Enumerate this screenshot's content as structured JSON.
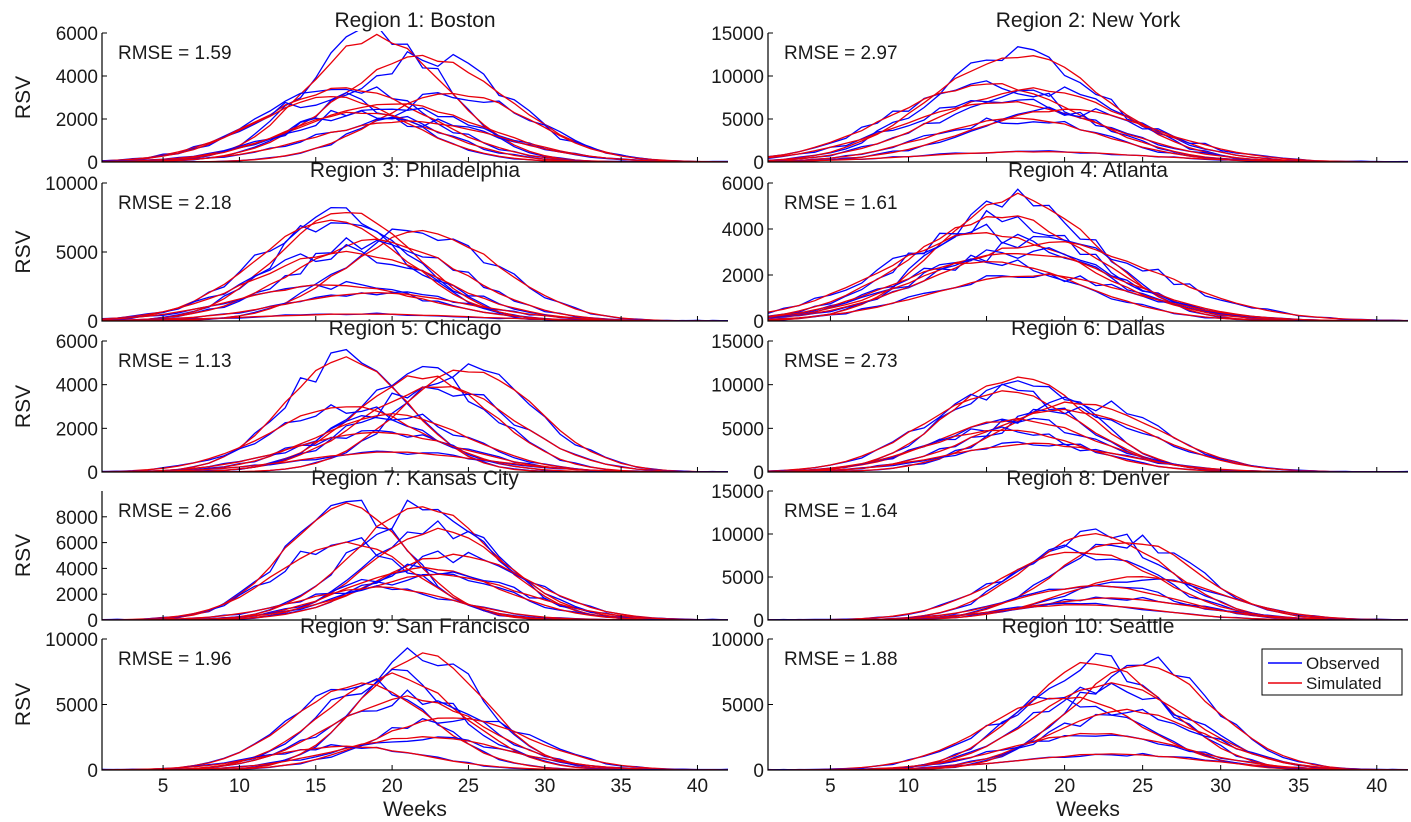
{
  "chart_data": {
    "type": "line",
    "xlabel": "Weeks",
    "xlim": [
      1,
      42
    ],
    "xticks": [
      5,
      10,
      15,
      20,
      25,
      30,
      35,
      40
    ],
    "colors": {
      "observed": "#0000ff",
      "simulated": "#e8000b"
    },
    "legend": {
      "placement": "top-right",
      "panel": 9,
      "entries": [
        "Observed",
        "Simulated"
      ]
    },
    "panels": [
      {
        "title": "Region 1: Boston",
        "rmse": "RMSE = 1.59",
        "ylabel": "RSV",
        "ylim": [
          0,
          6000
        ],
        "yticks": [
          0,
          2000,
          4000,
          6000
        ],
        "seasons": [
          {
            "peak": 5800,
            "week": 19,
            "width": 4.5
          },
          {
            "peak": 4900,
            "week": 22,
            "width": 5.5
          },
          {
            "peak": 3400,
            "week": 17,
            "width": 5.5
          },
          {
            "peak": 3200,
            "week": 24,
            "width": 5
          },
          {
            "peak": 3000,
            "week": 16,
            "width": 5
          },
          {
            "peak": 2700,
            "week": 20,
            "width": 6
          },
          {
            "peak": 2300,
            "week": 18,
            "width": 5
          },
          {
            "peak": 1900,
            "week": 21,
            "width": 6
          }
        ]
      },
      {
        "title": "Region 2: New York",
        "rmse": "RMSE = 2.97",
        "ylabel": "",
        "ylim": [
          0,
          15000
        ],
        "yticks": [
          0,
          5000,
          10000,
          15000
        ],
        "seasons": [
          {
            "peak": 12500,
            "week": 17,
            "width": 5.5
          },
          {
            "peak": 9000,
            "week": 15,
            "width": 6
          },
          {
            "peak": 8500,
            "week": 18,
            "width": 6
          },
          {
            "peak": 7000,
            "week": 16,
            "width": 6.5
          },
          {
            "peak": 6000,
            "week": 20,
            "width": 6
          },
          {
            "peak": 5000,
            "week": 17,
            "width": 5.5
          },
          {
            "peak": 1200,
            "week": 18,
            "width": 7
          }
        ]
      },
      {
        "title": "Region 3: Philadelphia",
        "rmse": "RMSE = 2.18",
        "ylabel": "RSV",
        "ylim": [
          0,
          10000
        ],
        "yticks": [
          0,
          5000,
          10000
        ],
        "seasons": [
          {
            "peak": 7900,
            "week": 17,
            "width": 4.5
          },
          {
            "peak": 7200,
            "week": 16,
            "width": 5
          },
          {
            "peak": 6500,
            "week": 22,
            "width": 5
          },
          {
            "peak": 5800,
            "week": 19,
            "width": 5.5
          },
          {
            "peak": 5000,
            "week": 17,
            "width": 6
          },
          {
            "peak": 2600,
            "week": 16,
            "width": 6
          },
          {
            "peak": 2000,
            "week": 19,
            "width": 6
          },
          {
            "peak": 500,
            "week": 18,
            "width": 7
          }
        ]
      },
      {
        "title": "Region 4: Atlanta",
        "rmse": "RMSE = 1.61",
        "ylabel": "",
        "ylim": [
          0,
          6000
        ],
        "yticks": [
          0,
          2000,
          4000,
          6000
        ],
        "seasons": [
          {
            "peak": 5400,
            "week": 17,
            "width": 5
          },
          {
            "peak": 4500,
            "week": 16,
            "width": 6
          },
          {
            "peak": 3800,
            "week": 15,
            "width": 6.5
          },
          {
            "peak": 3400,
            "week": 19,
            "width": 7
          },
          {
            "peak": 3000,
            "week": 17,
            "width": 6.5
          },
          {
            "peak": 2600,
            "week": 15,
            "width": 6
          },
          {
            "peak": 2000,
            "week": 18,
            "width": 6.5
          }
        ]
      },
      {
        "title": "Region 5: Chicago",
        "rmse": "RMSE = 1.13",
        "ylabel": "RSV",
        "ylim": [
          0,
          6000
        ],
        "yticks": [
          0,
          2000,
          4000,
          6000
        ],
        "seasons": [
          {
            "peak": 5200,
            "week": 17,
            "width": 4
          },
          {
            "peak": 4700,
            "week": 25,
            "width": 4.5
          },
          {
            "peak": 4400,
            "week": 22,
            "width": 4.5
          },
          {
            "peak": 3900,
            "week": 23,
            "width": 5
          },
          {
            "peak": 3000,
            "week": 17,
            "width": 5
          },
          {
            "peak": 2600,
            "week": 20,
            "width": 5
          },
          {
            "peak": 1800,
            "week": 19,
            "width": 5.5
          },
          {
            "peak": 900,
            "week": 20,
            "width": 6
          }
        ]
      },
      {
        "title": "Region 6: Dallas",
        "rmse": "RMSE = 2.73",
        "ylabel": "",
        "ylim": [
          0,
          15000
        ],
        "yticks": [
          0,
          5000,
          10000,
          15000
        ],
        "seasons": [
          {
            "peak": 10800,
            "week": 17,
            "width": 4.5
          },
          {
            "peak": 9200,
            "week": 16,
            "width": 5
          },
          {
            "peak": 8000,
            "week": 21,
            "width": 5
          },
          {
            "peak": 7000,
            "week": 20,
            "width": 5.5
          },
          {
            "peak": 6000,
            "week": 17,
            "width": 5
          },
          {
            "peak": 4800,
            "week": 16,
            "width": 5
          },
          {
            "peak": 3200,
            "week": 18,
            "width": 5.5
          }
        ]
      },
      {
        "title": "Region 7: Kansas City",
        "rmse": "RMSE = 2.66",
        "ylabel": "RSV",
        "ylim": [
          0,
          10000
        ],
        "yticks": [
          0,
          2000,
          4000,
          6000,
          8000
        ],
        "seasons": [
          {
            "peak": 9000,
            "week": 17,
            "width": 4
          },
          {
            "peak": 8800,
            "week": 22,
            "width": 4.5
          },
          {
            "peak": 7000,
            "week": 23,
            "width": 4.5
          },
          {
            "peak": 6000,
            "week": 17,
            "width": 4.5
          },
          {
            "peak": 5000,
            "week": 24,
            "width": 5
          },
          {
            "peak": 4000,
            "week": 22,
            "width": 5
          },
          {
            "peak": 3500,
            "week": 23,
            "width": 5.5
          },
          {
            "peak": 2500,
            "week": 19,
            "width": 5
          }
        ]
      },
      {
        "title": "Region 8: Denver",
        "rmse": "RMSE = 1.64",
        "ylabel": "",
        "ylim": [
          0,
          15000
        ],
        "yticks": [
          0,
          5000,
          10000,
          15000
        ],
        "seasons": [
          {
            "peak": 10000,
            "week": 22,
            "width": 4.5
          },
          {
            "peak": 9200,
            "week": 24,
            "width": 4.5
          },
          {
            "peak": 8000,
            "week": 21,
            "width": 5
          },
          {
            "peak": 5000,
            "week": 25,
            "width": 5
          },
          {
            "peak": 4000,
            "week": 22,
            "width": 5
          },
          {
            "peak": 2500,
            "week": 23,
            "width": 5.5
          },
          {
            "peak": 1800,
            "week": 21,
            "width": 5
          }
        ]
      },
      {
        "title": "Region 9: San Francisco",
        "rmse": "RMSE = 1.96",
        "ylabel": "RSV",
        "ylim": [
          0,
          10000
        ],
        "yticks": [
          0,
          5000,
          10000
        ],
        "seasons": [
          {
            "peak": 8800,
            "week": 22,
            "width": 4
          },
          {
            "peak": 7200,
            "week": 20,
            "width": 4.5
          },
          {
            "peak": 6500,
            "week": 18,
            "width": 4.5
          },
          {
            "peak": 5500,
            "week": 21,
            "width": 5
          },
          {
            "peak": 4000,
            "week": 24,
            "width": 5
          },
          {
            "peak": 2500,
            "week": 22,
            "width": 5.5
          },
          {
            "peak": 1800,
            "week": 17,
            "width": 5
          }
        ]
      },
      {
        "title": "Region 10: Seattle",
        "rmse": "RMSE = 1.88",
        "ylabel": "",
        "ylim": [
          0,
          10000
        ],
        "yticks": [
          0,
          5000,
          10000
        ],
        "seasons": [
          {
            "peak": 8200,
            "week": 22,
            "width": 4.5
          },
          {
            "peak": 8000,
            "week": 25,
            "width": 4.5
          },
          {
            "peak": 6500,
            "week": 23,
            "width": 5
          },
          {
            "peak": 5500,
            "week": 20,
            "width": 5
          },
          {
            "peak": 4500,
            "week": 24,
            "width": 5
          },
          {
            "peak": 2800,
            "week": 22,
            "width": 5.5
          },
          {
            "peak": 1200,
            "week": 23,
            "width": 6
          }
        ]
      }
    ]
  }
}
